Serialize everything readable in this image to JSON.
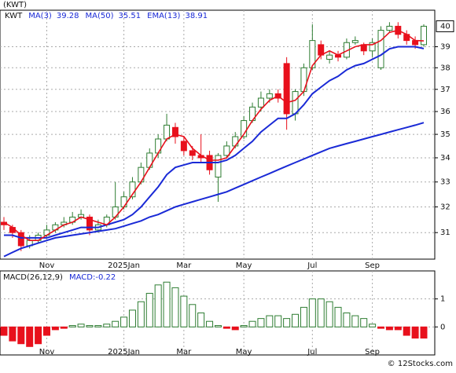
{
  "footer": "© 12Stocks.com",
  "chart_data": [
    {
      "type": "candlestick",
      "title": "(KWT)",
      "log_scale": true,
      "grid": true,
      "categories": [
        null,
        null,
        null,
        null,
        null,
        "Nov",
        null,
        null,
        null,
        null,
        null,
        null,
        null,
        null,
        "2025Jan",
        null,
        null,
        null,
        null,
        null,
        null,
        "Mar",
        null,
        null,
        null,
        null,
        null,
        null,
        "May",
        null,
        null,
        null,
        null,
        null,
        null,
        null,
        "Jul",
        null,
        null,
        null,
        null,
        null,
        null,
        "Sep",
        null,
        null,
        null,
        null,
        null,
        null
      ],
      "ylim": [
        30,
        40.8
      ],
      "yticks": [
        31,
        32,
        33,
        34,
        35,
        36,
        37,
        38,
        39
      ],
      "up_color": "#2e7d32",
      "down_color": "#e8101c",
      "series": [
        {
          "name": "KWT",
          "open": [
            31.4,
            31.2,
            31.0,
            30.5,
            30.7,
            30.9,
            31.1,
            31.3,
            31.4,
            31.6,
            31.6,
            31.1,
            31.3,
            31.6,
            32.0,
            32.4,
            33.0,
            33.6,
            34.2,
            34.8,
            35.3,
            34.7,
            34.3,
            34.1,
            34.1,
            33.2,
            34.1,
            34.5,
            34.9,
            35.6,
            36.2,
            36.6,
            36.8,
            38.2,
            35.9,
            36.9,
            38.0,
            39.1,
            38.4,
            38.6,
            38.5,
            39.2,
            39.1,
            38.8,
            38.0,
            39.8,
            40.0,
            39.6,
            39.3,
            39.1
          ],
          "high": [
            31.6,
            31.3,
            31.1,
            30.9,
            31.0,
            31.3,
            31.4,
            31.6,
            31.8,
            31.9,
            31.7,
            31.5,
            31.7,
            33.0,
            32.6,
            33.2,
            33.8,
            34.4,
            35.0,
            35.9,
            35.5,
            34.9,
            34.5,
            35.0,
            34.3,
            34.2,
            34.7,
            35.1,
            35.8,
            36.4,
            36.9,
            37.0,
            37.0,
            38.5,
            37.0,
            38.2,
            40.1,
            39.3,
            38.8,
            38.8,
            39.4,
            39.5,
            39.2,
            39.4,
            40.0,
            40.2,
            40.2,
            39.8,
            39.5,
            40.1
          ],
          "low": [
            31.1,
            30.8,
            30.3,
            30.4,
            30.6,
            30.8,
            31.0,
            31.2,
            31.3,
            31.5,
            30.9,
            31.0,
            31.2,
            31.5,
            31.9,
            32.3,
            32.9,
            33.5,
            34.0,
            34.7,
            34.6,
            34.1,
            33.9,
            33.8,
            33.3,
            32.2,
            34.0,
            34.4,
            34.8,
            35.5,
            36.0,
            36.4,
            36.4,
            35.2,
            35.6,
            36.7,
            37.9,
            38.4,
            38.2,
            38.3,
            38.4,
            39.1,
            38.6,
            38.5,
            37.9,
            39.7,
            39.4,
            39.1,
            38.9,
            39.0
          ],
          "close": [
            31.3,
            31.0,
            30.5,
            30.7,
            30.9,
            31.1,
            31.3,
            31.4,
            31.6,
            31.7,
            31.1,
            31.3,
            31.6,
            32.0,
            32.4,
            33.0,
            33.6,
            34.2,
            34.8,
            35.4,
            34.9,
            34.3,
            34.1,
            34.0,
            33.5,
            34.1,
            34.5,
            34.9,
            35.6,
            36.2,
            36.6,
            36.8,
            36.6,
            35.9,
            36.9,
            38.0,
            39.3,
            38.6,
            38.6,
            38.5,
            39.2,
            39.3,
            38.8,
            39.2,
            39.8,
            40.0,
            39.6,
            39.3,
            39.1,
            40
          ]
        },
        {
          "name": "MA(3)",
          "color": "#e8101c",
          "values": [
            31.4,
            31.2,
            30.9,
            30.7,
            30.7,
            30.9,
            31.1,
            31.3,
            31.4,
            31.6,
            31.5,
            31.4,
            31.3,
            31.6,
            32.0,
            32.5,
            33.0,
            33.6,
            34.2,
            34.8,
            35.0,
            34.9,
            34.4,
            34.1,
            33.9,
            33.9,
            34.0,
            34.5,
            35.0,
            35.6,
            36.1,
            36.5,
            36.7,
            36.4,
            36.5,
            36.9,
            38.1,
            38.6,
            38.8,
            38.6,
            38.8,
            39.0,
            39.1,
            39.1,
            39.3,
            39.7,
            39.8,
            39.6,
            39.3,
            39.28
          ]
        },
        {
          "name": "MA(50)",
          "color": "#1a2ad6",
          "values": [
            30.1,
            30.25,
            30.4,
            30.5,
            30.6,
            30.7,
            30.8,
            30.85,
            30.9,
            30.95,
            31.0,
            31.05,
            31.1,
            31.15,
            31.25,
            31.35,
            31.45,
            31.6,
            31.7,
            31.85,
            32.0,
            32.1,
            32.2,
            32.3,
            32.4,
            32.5,
            32.6,
            32.75,
            32.9,
            33.05,
            33.2,
            33.35,
            33.5,
            33.65,
            33.8,
            33.95,
            34.1,
            34.25,
            34.4,
            34.5,
            34.6,
            34.7,
            34.8,
            34.9,
            35.0,
            35.1,
            35.2,
            35.3,
            35.4,
            35.51
          ]
        },
        {
          "name": "EMA(13)",
          "color": "#1a2ad6",
          "values": [
            30.9,
            30.9,
            30.8,
            30.8,
            30.8,
            30.8,
            30.9,
            31.0,
            31.1,
            31.2,
            31.2,
            31.2,
            31.3,
            31.4,
            31.5,
            31.7,
            32.0,
            32.4,
            32.8,
            33.3,
            33.6,
            33.7,
            33.8,
            33.8,
            33.8,
            33.8,
            33.9,
            34.1,
            34.4,
            34.7,
            35.1,
            35.4,
            35.7,
            35.7,
            35.9,
            36.3,
            36.8,
            37.1,
            37.4,
            37.6,
            37.9,
            38.1,
            38.2,
            38.4,
            38.6,
            38.9,
            39.0,
            39.0,
            39.0,
            38.91
          ]
        }
      ]
    },
    {
      "type": "macd",
      "title": "MACD(26,12,9)",
      "subtitle": "MACD:-0.22",
      "grid": true,
      "categories": [
        null,
        null,
        null,
        null,
        null,
        "Nov",
        null,
        null,
        null,
        null,
        null,
        null,
        null,
        null,
        "2025Jan",
        null,
        null,
        null,
        null,
        null,
        null,
        "Mar",
        null,
        null,
        null,
        null,
        null,
        null,
        "May",
        null,
        null,
        null,
        null,
        null,
        null,
        null,
        "Jul",
        null,
        null,
        null,
        null,
        null,
        null,
        "Sep",
        null,
        null,
        null,
        null,
        null,
        null
      ],
      "ylim": [
        -1,
        2
      ],
      "yticks": [
        0,
        1
      ],
      "up_color": "#2e7d32",
      "down_color": "#e8101c",
      "values": [
        -0.3,
        -0.5,
        -0.6,
        -0.7,
        -0.6,
        -0.3,
        -0.1,
        -0.05,
        0.05,
        0.1,
        0.05,
        0.05,
        0.1,
        0.2,
        0.35,
        0.6,
        0.9,
        1.2,
        1.5,
        1.6,
        1.4,
        1.1,
        0.8,
        0.5,
        0.2,
        0.05,
        -0.05,
        -0.1,
        0.05,
        0.2,
        0.3,
        0.4,
        0.4,
        0.3,
        0.45,
        0.7,
        1.0,
        1.0,
        0.9,
        0.7,
        0.5,
        0.4,
        0.3,
        0.1,
        -0.05,
        -0.1,
        -0.1,
        -0.3,
        -0.4,
        -0.4
      ]
    }
  ]
}
